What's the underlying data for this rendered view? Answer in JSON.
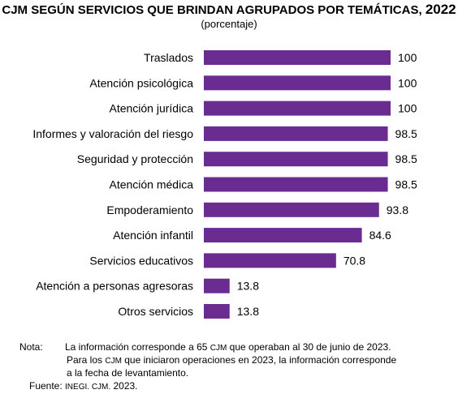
{
  "chart_data": {
    "type": "bar",
    "orientation": "horizontal",
    "title_prefix": "CJM",
    "title_main": " SEGÚN SERVICIOS QUE BRINDAN AGRUPADOS POR TEMÁTICAS, ",
    "title_year": "2022",
    "subtitle": "(porcentaje)",
    "categories": [
      "Traslados",
      "Atención psicológica",
      "Atención jurídica",
      "Informes y valoración del riesgo",
      "Seguridad y protección",
      "Atención médica",
      "Empoderamiento",
      "Atención infantil",
      "Servicios educativos",
      "Atención a personas agresoras",
      "Otros servicios"
    ],
    "values": [
      100,
      100,
      100,
      98.5,
      98.5,
      98.5,
      93.8,
      84.6,
      70.8,
      13.8,
      13.8
    ],
    "value_labels": [
      "100",
      "100",
      "100",
      "98.5",
      "98.5",
      "98.5",
      "93.8",
      "84.6",
      "70.8",
      "13.8",
      "13.8"
    ],
    "xlim": [
      0,
      100
    ],
    "bar_color": "#6a2c91",
    "grid": false,
    "legend": "none"
  },
  "notes": {
    "label": "Nota:",
    "line1_a": "La información corresponde a 65 ",
    "line1_sc": "CJM",
    "line1_b": " que operaban al 30 de junio de 2023.",
    "line2_a": "Para los ",
    "line2_sc": "CJM",
    "line2_b": " que iniciaron operaciones en 2023, la información corresponde",
    "line3": "a la fecha de levantamiento.",
    "source_label": "Fuente: ",
    "source_sc": "INEGI. CJM.",
    "source_year": " 2023."
  }
}
